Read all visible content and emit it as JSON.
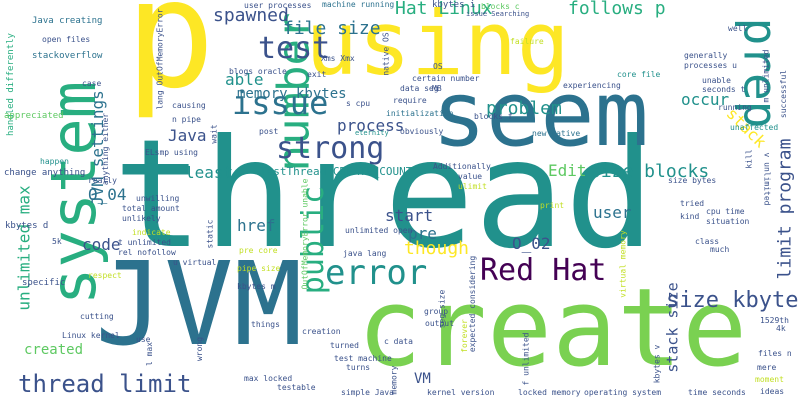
{
  "palette": {
    "purple": "#440154",
    "indigo": "#3b528b",
    "blue": "#2c728e",
    "teal": "#21918c",
    "green": "#28ae80",
    "lime": "#5ec962",
    "lightgreen": "#7ad151",
    "yellow": "#fde725",
    "yellowgreen": "#c2df23"
  },
  "words": [
    {
      "text": "thread",
      "color": "teal"
    },
    {
      "text": "p",
      "color": "yellow"
    },
    {
      "text": "create",
      "color": "lightgreen"
    },
    {
      "text": "seem",
      "color": "blue"
    },
    {
      "text": "using",
      "color": "yellow"
    },
    {
      "text": "JVM",
      "color": "blue"
    },
    {
      "text": "system",
      "color": "green"
    },
    {
      "text": "number",
      "color": "green"
    },
    {
      "text": "prep",
      "color": "teal"
    },
    {
      "text": "Red Hat",
      "color": "purple"
    },
    {
      "text": "error",
      "color": "teal"
    },
    {
      "text": "issue",
      "color": "blue"
    },
    {
      "text": "strong",
      "color": "indigo"
    },
    {
      "text": "thread limit",
      "color": "indigo"
    },
    {
      "text": "test",
      "color": "indigo"
    },
    {
      "text": "public",
      "color": "green"
    },
    {
      "text": "size kbytes",
      "color": "indigo"
    },
    {
      "text": "file size",
      "color": "blue"
    },
    {
      "text": "limit program",
      "color": "indigo"
    },
    {
      "text": "unlimited max",
      "color": "green"
    },
    {
      "text": "Hat Linux",
      "color": "green"
    },
    {
      "text": "follows p",
      "color": "green"
    },
    {
      "text": "spawned",
      "color": "indigo"
    },
    {
      "text": "problem",
      "color": "teal"
    },
    {
      "text": "size blocks",
      "color": "teal"
    },
    {
      "text": "JVM settings",
      "color": "blue"
    },
    {
      "text": "process",
      "color": "indigo"
    },
    {
      "text": "stack size",
      "color": "indigo"
    },
    {
      "text": "memory kbytes",
      "color": "blue"
    },
    {
      "text": "able",
      "color": "teal"
    },
    {
      "text": "occur",
      "color": "teal"
    },
    {
      "text": "stack",
      "color": "yellow"
    },
    {
      "text": "Java",
      "color": "indigo"
    },
    {
      "text": "least",
      "color": "teal"
    },
    {
      "text": "Edit",
      "color": "lime"
    },
    {
      "text": "code",
      "color": "indigo"
    },
    {
      "text": "href",
      "color": "blue"
    },
    {
      "text": "O_02",
      "color": "indigo"
    },
    {
      "text": "O_04",
      "color": "blue"
    },
    {
      "text": "start",
      "color": "indigo"
    },
    {
      "text": "user",
      "color": "blue"
    },
    {
      "text": "pre",
      "color": "blue"
    },
    {
      "text": "though",
      "color": "yellow"
    },
    {
      "text": "created",
      "color": "lime"
    },
    {
      "text": "VM",
      "color": "indigo"
    },
    {
      "text": "TestThread CREATE_COUNT",
      "color": "teal"
    },
    {
      "text": "Java creating",
      "color": "blue"
    },
    {
      "text": "stackoverflow",
      "color": "blue"
    },
    {
      "text": "open files",
      "color": "indigo"
    },
    {
      "text": "handled differently",
      "color": "green"
    },
    {
      "text": "appreciated",
      "color": "lime"
    },
    {
      "text": "user processes",
      "color": "indigo"
    },
    {
      "text": "machine running",
      "color": "blue"
    },
    {
      "text": "kbytes i",
      "color": "indigo"
    },
    {
      "text": "blocks c",
      "color": "lime"
    },
    {
      "text": "failure",
      "color": "yellowgreen"
    },
    {
      "text": "lang OutOfMemoryError",
      "color": "indigo"
    },
    {
      "text": "Xms Xmx",
      "color": "indigo"
    },
    {
      "text": "certain number",
      "color": "indigo"
    },
    {
      "text": "data seg",
      "color": "indigo"
    },
    {
      "text": "initialization",
      "color": "blue"
    },
    {
      "text": "obviously",
      "color": "indigo"
    },
    {
      "text": "eternity",
      "color": "teal"
    },
    {
      "text": "require",
      "color": "indigo"
    },
    {
      "text": "s cpu",
      "color": "indigo"
    },
    {
      "text": "blocks f",
      "color": "indigo"
    },
    {
      "text": "new native",
      "color": "blue"
    },
    {
      "text": "core file",
      "color": "teal"
    },
    {
      "text": "experiencing",
      "color": "indigo"
    },
    {
      "text": "generally",
      "color": "indigo"
    },
    {
      "text": "processes u",
      "color": "indigo"
    },
    {
      "text": "unable",
      "color": "indigo"
    },
    {
      "text": "seconds t",
      "color": "indigo"
    },
    {
      "text": "running",
      "color": "indigo"
    },
    {
      "text": "unaffected",
      "color": "teal"
    },
    {
      "text": "m unlimited",
      "color": "indigo"
    },
    {
      "text": "successful",
      "color": "indigo"
    },
    {
      "text": "exit",
      "color": "indigo"
    },
    {
      "text": "native OS",
      "color": "indigo"
    },
    {
      "text": "n pipe",
      "color": "indigo"
    },
    {
      "text": "post",
      "color": "indigo"
    },
    {
      "text": "wait",
      "color": "indigo"
    },
    {
      "text": "causing",
      "color": "indigo"
    },
    {
      "text": "ELsmp using",
      "color": "indigo"
    },
    {
      "text": "change anything",
      "color": "indigo"
    },
    {
      "text": "happen",
      "color": "teal"
    },
    {
      "text": "anything either",
      "color": "indigo"
    },
    {
      "text": "Additionally",
      "color": "indigo"
    },
    {
      "text": "value",
      "color": "indigo"
    },
    {
      "text": "ulimit",
      "color": "yellowgreen"
    },
    {
      "text": "size bytes",
      "color": "indigo"
    },
    {
      "text": "v unlimited",
      "color": "indigo"
    },
    {
      "text": "kill",
      "color": "indigo"
    },
    {
      "text": "tried",
      "color": "indigo"
    },
    {
      "text": "kind",
      "color": "indigo"
    },
    {
      "text": "cpu time",
      "color": "indigo"
    },
    {
      "text": "situation",
      "color": "indigo"
    },
    {
      "text": "class",
      "color": "indigo"
    },
    {
      "text": "much",
      "color": "indigo"
    },
    {
      "text": "really",
      "color": "indigo"
    },
    {
      "text": "total amount",
      "color": "indigo"
    },
    {
      "text": "unwilling",
      "color": "indigo"
    },
    {
      "text": "unlikely",
      "color": "indigo"
    },
    {
      "text": "indicate",
      "color": "yellowgreen"
    },
    {
      "text": "t unlimited",
      "color": "indigo"
    },
    {
      "text": "rel nofollow",
      "color": "indigo"
    },
    {
      "text": "u virtual",
      "color": "indigo"
    },
    {
      "text": "pre core",
      "color": "yellowgreen"
    },
    {
      "text": "unlimited open",
      "color": "indigo"
    },
    {
      "text": "java lang",
      "color": "indigo"
    },
    {
      "text": "print",
      "color": "yellowgreen"
    },
    {
      "text": "kbytes d",
      "color": "indigo"
    },
    {
      "text": "5k",
      "color": "indigo"
    },
    {
      "text": "specific",
      "color": "indigo"
    },
    {
      "text": "respect",
      "color": "yellowgreen"
    },
    {
      "text": "kbytes m",
      "color": "indigo"
    },
    {
      "text": "things",
      "color": "indigo"
    },
    {
      "text": "group",
      "color": "indigo"
    },
    {
      "text": "output",
      "color": "indigo"
    },
    {
      "text": "expected considering",
      "color": "indigo"
    },
    {
      "text": "cutting",
      "color": "indigo"
    },
    {
      "text": "Linux kernel",
      "color": "indigo"
    },
    {
      "text": "use",
      "color": "indigo"
    },
    {
      "text": "creation",
      "color": "indigo"
    },
    {
      "text": "c data",
      "color": "indigo"
    },
    {
      "text": "turned",
      "color": "indigo"
    },
    {
      "text": "test machine",
      "color": "indigo"
    },
    {
      "text": "turns",
      "color": "indigo"
    },
    {
      "text": "max locked",
      "color": "indigo"
    },
    {
      "text": "testable",
      "color": "indigo"
    },
    {
      "text": "simple Java",
      "color": "indigo"
    },
    {
      "text": "memory",
      "color": "indigo"
    },
    {
      "text": "kernel version",
      "color": "indigo"
    },
    {
      "text": "locked memory",
      "color": "indigo"
    },
    {
      "text": "operating system",
      "color": "indigo"
    },
    {
      "text": "time seconds",
      "color": "indigo"
    },
    {
      "text": "files n",
      "color": "indigo"
    },
    {
      "text": "mere",
      "color": "indigo"
    },
    {
      "text": "moment",
      "color": "yellowgreen"
    },
    {
      "text": "ideas",
      "color": "indigo"
    },
    {
      "text": "4k",
      "color": "indigo"
    },
    {
      "text": "1529th",
      "color": "indigo"
    },
    {
      "text": "kbytes v",
      "color": "indigo"
    },
    {
      "text": "seg size",
      "color": "indigo"
    },
    {
      "text": "forever",
      "color": "yellowgreen"
    },
    {
      "text": "f unlimited",
      "color": "indigo"
    },
    {
      "text": "OutOfMemoryError unable",
      "color": "lime"
    },
    {
      "text": "pipe size",
      "color": "yellowgreen"
    },
    {
      "text": "static",
      "color": "indigo"
    },
    {
      "text": "wrong",
      "color": "indigo"
    },
    {
      "text": "l max",
      "color": "indigo"
    },
    {
      "text": "virtual memory",
      "color": "yellowgreen"
    },
    {
      "text": "well",
      "color": "indigo"
    },
    {
      "text": "case",
      "color": "indigo"
    },
    {
      "text": "blogs oracle",
      "color": "indigo"
    },
    {
      "text": "issue Searching",
      "color": "indigo"
    },
    {
      "text": "OS",
      "color": "indigo"
    },
    {
      "text": "MB",
      "color": "indigo"
    }
  ]
}
